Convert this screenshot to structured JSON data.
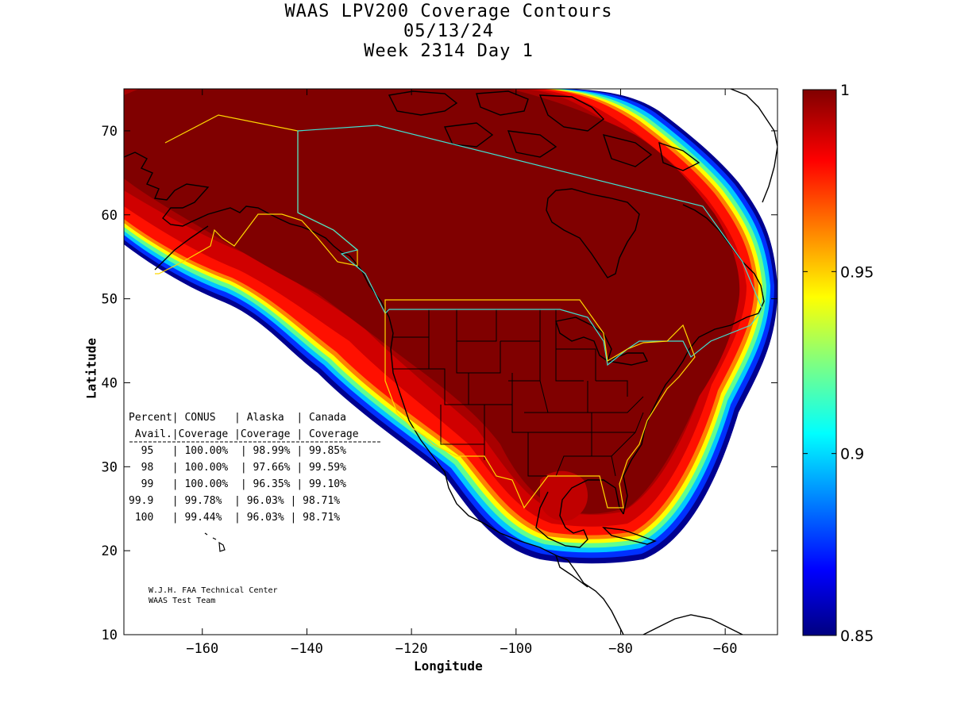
{
  "title": {
    "line1": "WAAS LPV200 Coverage Contours",
    "line2": "05/13/24",
    "line3": "Week 2314 Day 1"
  },
  "axes": {
    "xlabel": "Longitude",
    "ylabel": "Latitude",
    "xlim": [
      -175,
      -50
    ],
    "ylim": [
      10,
      75
    ],
    "xticks": [
      -160,
      -140,
      -120,
      -100,
      -80,
      -60
    ],
    "yticks": [
      10,
      20,
      30,
      40,
      50,
      60,
      70
    ]
  },
  "colorbar": {
    "range": [
      0.85,
      1
    ],
    "ticks": [
      "1",
      "0.95",
      "0.9",
      "0.85"
    ]
  },
  "table": {
    "header1": "Percent| CONUS   | Alaska  | Canada",
    "header2": " Avail.|Coverage |Coverage | Coverage",
    "rows": [
      "  95   | 100.00%  | 98.99% | 99.85%",
      "  98   | 100.00%  | 97.66% | 99.59%",
      "  99   | 100.00%  | 96.35% | 99.10%",
      "99.9   | 99.78%  | 96.03% | 98.71%",
      " 100   | 99.44%  | 96.03% | 98.71%"
    ]
  },
  "credit": {
    "line1": "W.J.H. FAA Technical Center",
    "line2": "WAAS Test Team"
  },
  "colors": {
    "max": "#800000",
    "red": "#ff0000",
    "yellow": "#ffff00",
    "cyan": "#00ffff",
    "blue": "#0000ff",
    "min": "#000080",
    "conus_border": "#ffd700",
    "canada_border": "#40e0d0"
  }
}
